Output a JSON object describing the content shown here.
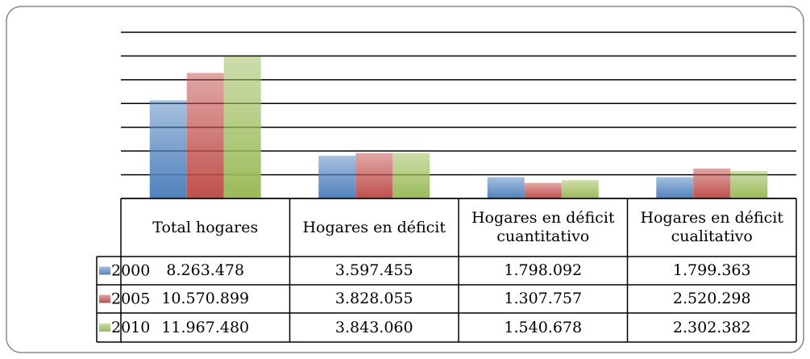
{
  "chart_data": {
    "type": "bar",
    "categories": [
      "Total hogares",
      "Hogares en déficit",
      "Hogares en déficit cuantitativo",
      "Hogares en déficit cualitativo"
    ],
    "series": [
      {
        "name": "2000",
        "color": "#4f81bd",
        "values": [
          8263478,
          3597455,
          1798092,
          1799363
        ],
        "value_labels": [
          "8.263.478",
          "3.597.455",
          "1.798.092",
          "1.799.363"
        ]
      },
      {
        "name": "2005",
        "color": "#c0504d",
        "values": [
          10570899,
          3828055,
          1307757,
          2520298
        ],
        "value_labels": [
          "10.570.899",
          "3.828.055",
          "1.307.757",
          "2.520.298"
        ]
      },
      {
        "name": "2010",
        "color": "#9bbb59",
        "values": [
          11967480,
          3843060,
          1540678,
          2302382
        ],
        "value_labels": [
          "11.967.480",
          "3.843.060",
          "1.540.678",
          "2.302.382"
        ]
      }
    ],
    "ylim": [
      0,
      14000000
    ],
    "yticks": [
      0,
      2000000,
      4000000,
      6000000,
      8000000,
      10000000,
      12000000,
      14000000
    ],
    "grid": true
  }
}
